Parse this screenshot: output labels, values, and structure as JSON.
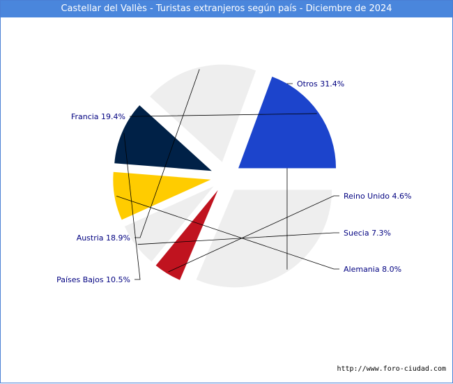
{
  "title": "Castellar del Vallès - Turistas extranjeros según país - Diciembre de 2024",
  "source": "http://www.foro-ciudad.com",
  "colors": {
    "title_bar": "#4a86dc",
    "label_text": "#000080",
    "leader_line": "#000000"
  },
  "chart_data": {
    "type": "pie",
    "title": "Castellar del Vallès - Turistas extranjeros según país - Diciembre de 2024",
    "legend": "none",
    "exploded": true,
    "slices": [
      {
        "name": "Otros",
        "value": 31.4,
        "label": "Otros 31.4%",
        "color": "#eeeeee"
      },
      {
        "name": "Reino Unido",
        "value": 4.6,
        "label": "Reino Unido 4.6%",
        "color": "#c0131f"
      },
      {
        "name": "Suecia",
        "value": 7.3,
        "label": "Suecia 7.3%",
        "color": "#eeeeee"
      },
      {
        "name": "Alemania",
        "value": 8.0,
        "label": "Alemania 8.0%",
        "color": "#ffcc00"
      },
      {
        "name": "Países Bajos",
        "value": 10.5,
        "label": "Países Bajos 10.5%",
        "color": "#002147"
      },
      {
        "name": "Austria",
        "value": 18.9,
        "label": "Austria 18.9%",
        "color": "#eeeeee"
      },
      {
        "name": "Francia",
        "value": 19.4,
        "label": "Francia 19.4%",
        "color": "#1c44cc"
      }
    ]
  }
}
